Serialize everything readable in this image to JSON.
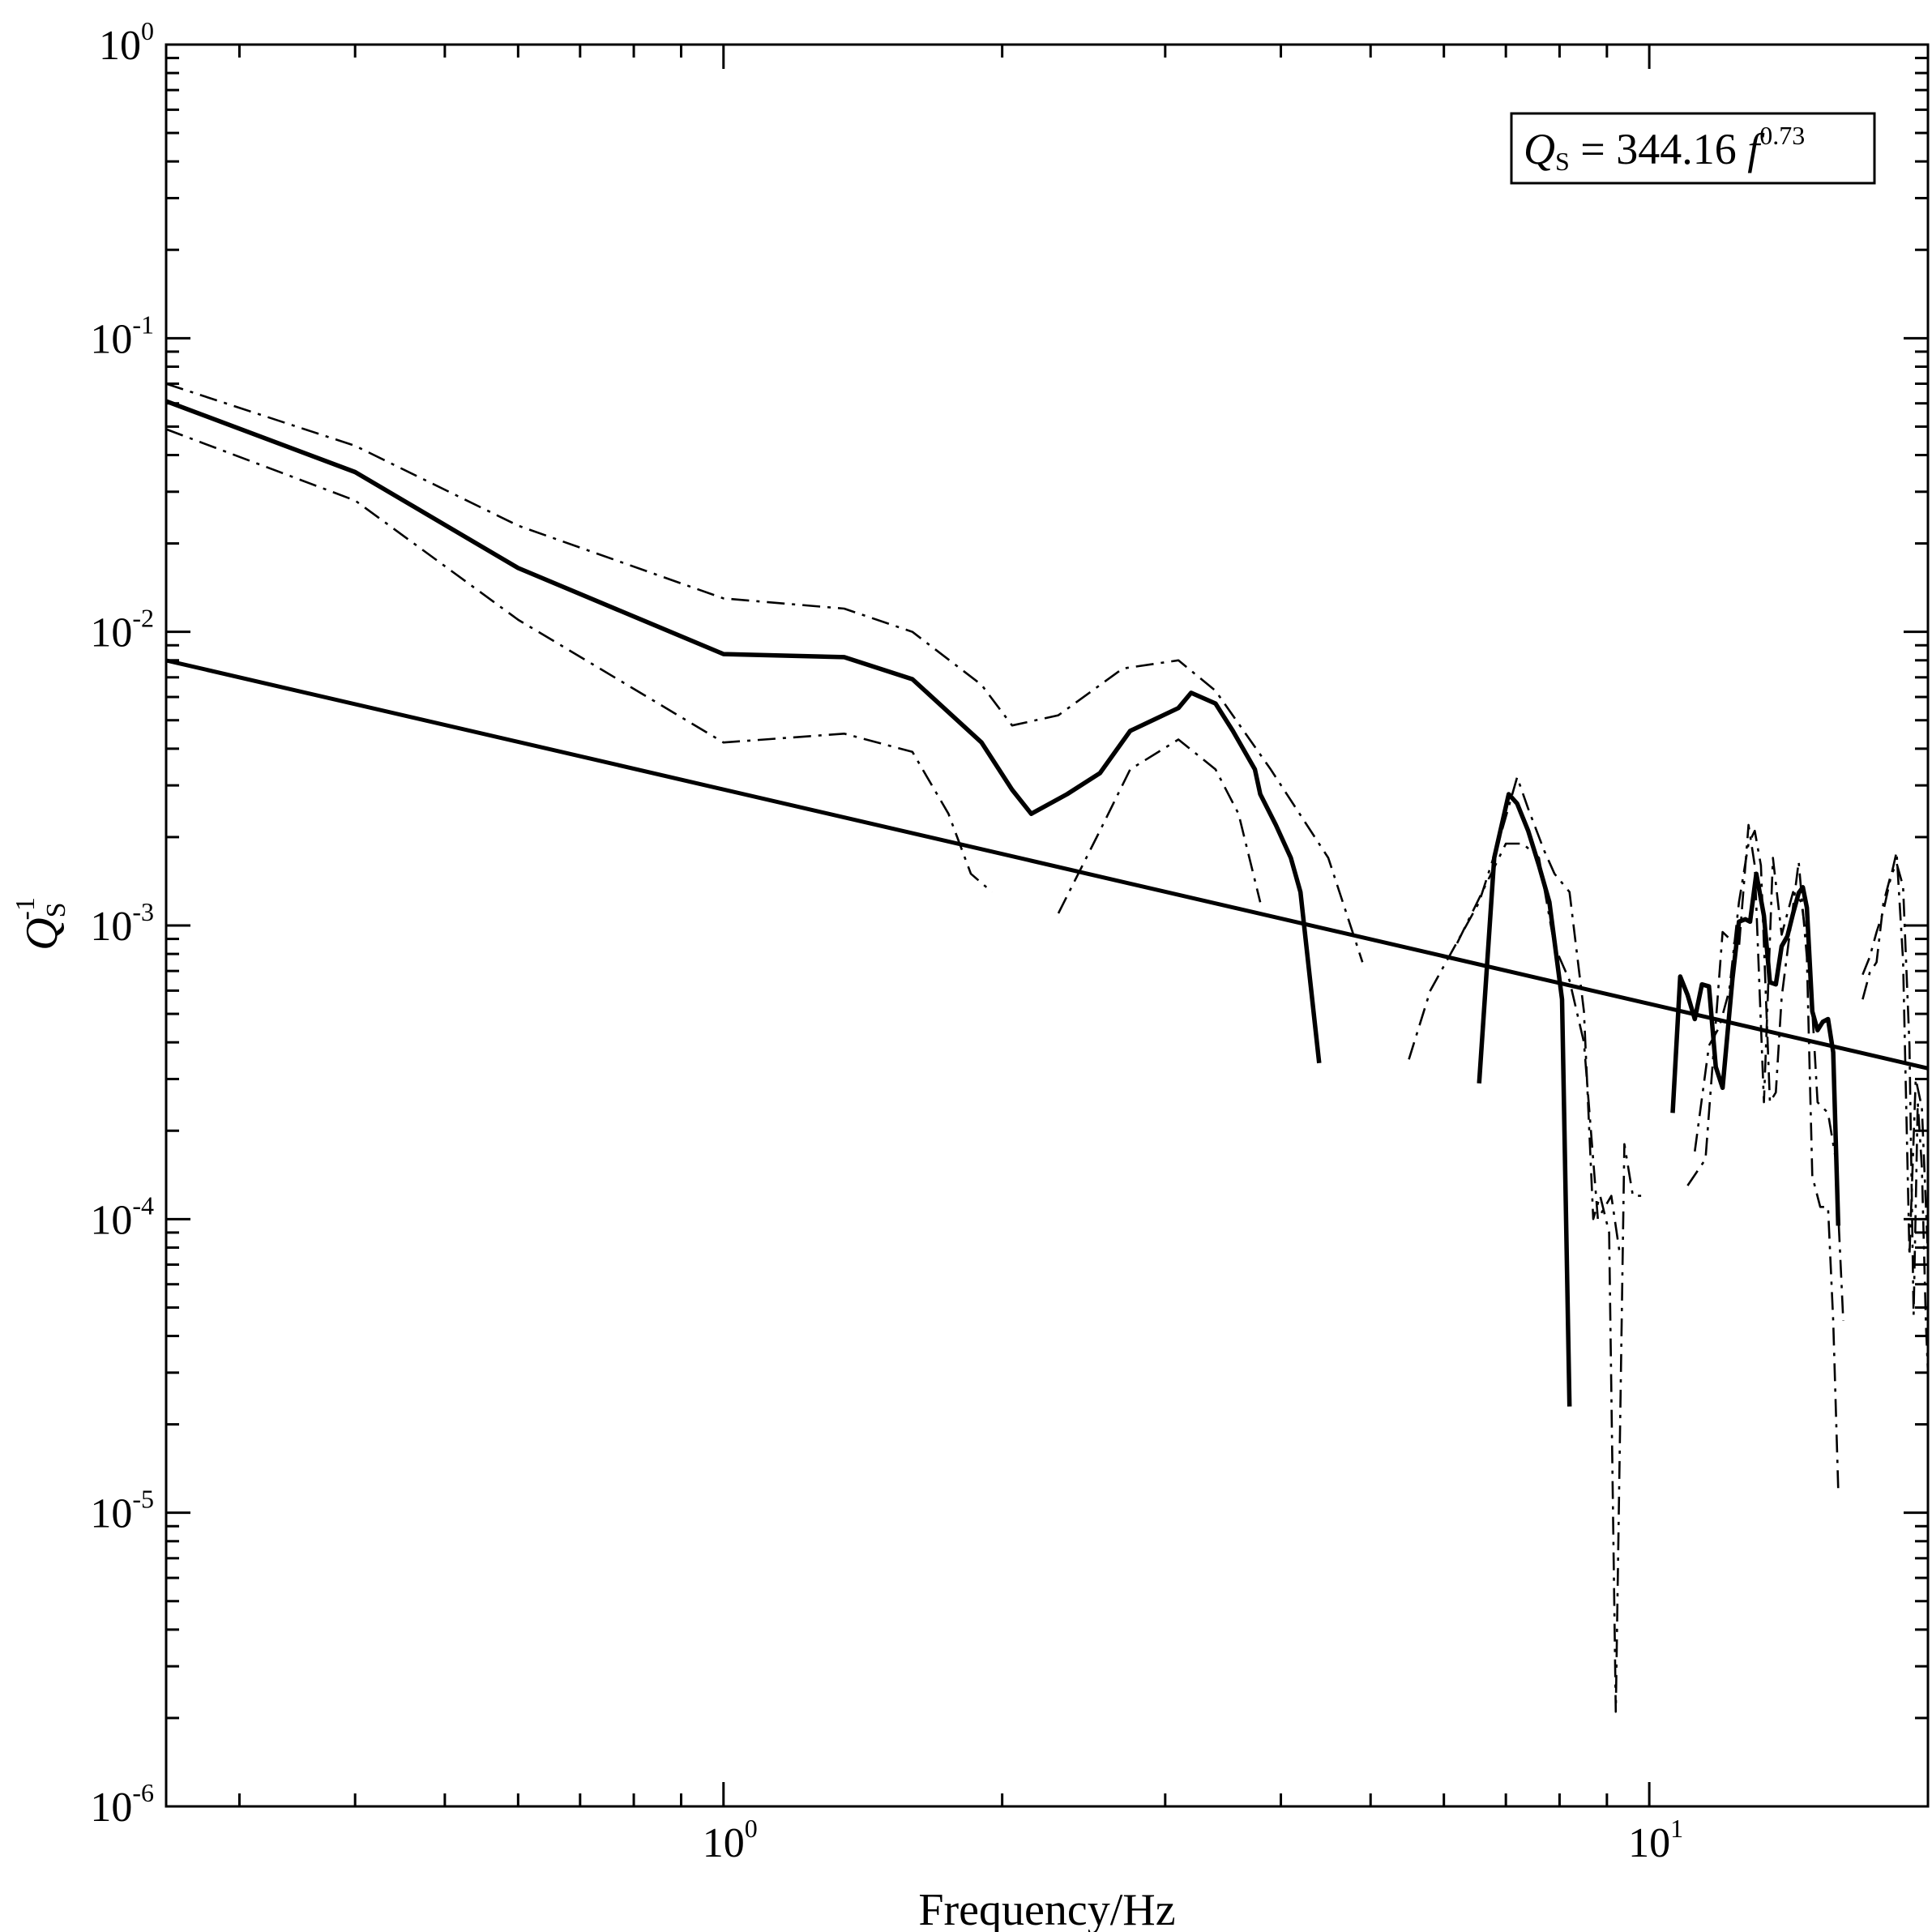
{
  "chart_data": {
    "type": "line",
    "title": "",
    "xlabel": "Frequency/Hz",
    "ylabel": {
      "base": "Q",
      "subscript": "S",
      "superscript": "-1"
    },
    "x_scale": "log",
    "y_scale": "log",
    "xlim": [
      0.25,
      20
    ],
    "ylim": [
      1e-06,
      1
    ],
    "grid": false,
    "legend": "none",
    "x_tick_labels": [
      {
        "value": 1,
        "base": "10",
        "exp": "0"
      },
      {
        "value": 10,
        "base": "10",
        "exp": "1"
      }
    ],
    "y_tick_labels": [
      {
        "value": 1,
        "base": "10",
        "exp": "0"
      },
      {
        "value": 0.1,
        "base": "10",
        "exp": "-1"
      },
      {
        "value": 0.01,
        "base": "10",
        "exp": "-2"
      },
      {
        "value": 0.001,
        "base": "10",
        "exp": "-3"
      },
      {
        "value": 0.0001,
        "base": "10",
        "exp": "-4"
      },
      {
        "value": 1e-05,
        "base": "10",
        "exp": "-5"
      },
      {
        "value": 1e-06,
        "base": "10",
        "exp": "-6"
      }
    ],
    "annotation": {
      "q": "Q",
      "sub": "S",
      "rest": " = 344.16 ",
      "f": "f",
      "exp": "0.73"
    },
    "fit_line": {
      "coefficient": 344.16,
      "exponent": 0.73
    },
    "series": [
      {
        "style": "solid",
        "segments": [
          [
            [
              0.25,
              0.061
            ],
            [
              0.4,
              0.035
            ],
            [
              0.6,
              0.0165
            ],
            [
              1.0,
              0.0084
            ],
            [
              1.35,
              0.0082
            ],
            [
              1.6,
              0.0069
            ],
            [
              1.9,
              0.0042
            ],
            [
              2.05,
              0.0029
            ],
            [
              2.15,
              0.0024
            ],
            [
              2.35,
              0.0028
            ],
            [
              2.55,
              0.0033
            ],
            [
              2.75,
              0.0046
            ],
            [
              3.1,
              0.0055
            ],
            [
              3.2,
              0.0062
            ],
            [
              3.4,
              0.0057
            ],
            [
              3.55,
              0.0046
            ],
            [
              3.75,
              0.0034
            ],
            [
              3.8,
              0.0028
            ],
            [
              3.95,
              0.0022
            ],
            [
              4.1,
              0.0017
            ],
            [
              4.2,
              0.0013
            ],
            [
              4.4,
              0.00034
            ]
          ],
          [
            [
              6.55,
              0.00029
            ],
            [
              6.8,
              0.0017
            ],
            [
              7.05,
              0.0028
            ],
            [
              7.2,
              0.0026
            ],
            [
              7.4,
              0.0021
            ],
            [
              7.6,
              0.0016
            ],
            [
              7.8,
              0.0012
            ],
            [
              8.05,
              0.00056
            ],
            [
              8.2,
              2.3e-05
            ]
          ],
          [
            [
              10.6,
              0.00023
            ],
            [
              10.8,
              0.00067
            ],
            [
              11.0,
              0.00058
            ],
            [
              11.2,
              0.00048
            ],
            [
              11.4,
              0.00063
            ],
            [
              11.6,
              0.00062
            ],
            [
              11.8,
              0.00033
            ],
            [
              12.0,
              0.00028
            ],
            [
              12.3,
              0.00066
            ],
            [
              12.5,
              0.00103
            ],
            [
              12.7,
              0.00105
            ],
            [
              12.85,
              0.00103
            ],
            [
              13.05,
              0.0015
            ],
            [
              13.3,
              0.00108
            ],
            [
              13.5,
              0.00064
            ],
            [
              13.7,
              0.00063
            ],
            [
              13.9,
              0.00085
            ],
            [
              14.1,
              0.00092
            ],
            [
              14.3,
              0.0011
            ],
            [
              14.5,
              0.00129
            ],
            [
              14.65,
              0.00135
            ],
            [
              14.8,
              0.00115
            ],
            [
              15.0,
              0.00051
            ],
            [
              15.2,
              0.00044
            ],
            [
              15.4,
              0.00047
            ],
            [
              15.6,
              0.00048
            ],
            [
              15.8,
              0.00037
            ],
            [
              16.0,
              9.5e-05
            ]
          ]
        ]
      },
      {
        "style": "dashdot",
        "segments": [
          [
            [
              0.25,
              0.07
            ],
            [
              0.4,
              0.043
            ],
            [
              0.6,
              0.023
            ],
            [
              1.0,
              0.013
            ],
            [
              1.35,
              0.012
            ],
            [
              1.6,
              0.01
            ],
            [
              1.9,
              0.0066
            ],
            [
              2.05,
              0.0048
            ],
            [
              2.3,
              0.0052
            ],
            [
              2.7,
              0.0075
            ],
            [
              3.1,
              0.008
            ],
            [
              3.4,
              0.0063
            ],
            [
              3.9,
              0.0034
            ],
            [
              4.5,
              0.0017
            ],
            [
              4.9,
              0.00075
            ]
          ],
          [
            [
              5.5,
              0.00035
            ],
            [
              5.8,
              0.0006
            ],
            [
              6.1,
              0.0008
            ],
            [
              6.55,
              0.0012
            ],
            [
              6.9,
              0.002
            ],
            [
              7.2,
              0.0032
            ],
            [
              7.4,
              0.0025
            ],
            [
              7.7,
              0.0018
            ],
            [
              7.9,
              0.0015
            ],
            [
              8.2,
              0.0013
            ],
            [
              8.5,
              0.00051
            ],
            [
              8.7,
              0.0001
            ],
            [
              8.85,
              0.00012
            ],
            [
              9.05,
              9e-05
            ],
            [
              9.2,
              2.1e-06
            ],
            [
              9.4,
              0.00018
            ],
            [
              9.6,
              0.00012
            ],
            [
              9.8,
              0.00012
            ]
          ],
          [
            [
              11.2,
              0.00017
            ],
            [
              11.6,
              0.00039
            ],
            [
              11.9,
              0.00045
            ],
            [
              12.2,
              0.0006
            ],
            [
              12.5,
              0.0012
            ],
            [
              12.8,
              0.0019
            ],
            [
              13.0,
              0.0021
            ],
            [
              13.2,
              0.0016
            ],
            [
              13.5,
              0.00025
            ],
            [
              13.7,
              0.00027
            ],
            [
              13.9,
              0.00057
            ],
            [
              14.2,
              0.00097
            ],
            [
              14.5,
              0.00165
            ],
            [
              14.8,
              0.00078
            ],
            [
              15.0,
              0.00014
            ],
            [
              15.3,
              0.00011
            ],
            [
              15.6,
              0.00011
            ],
            [
              15.8,
              4.5e-05
            ],
            [
              16.0,
              1.2e-05
            ]
          ],
          [
            [
              17.0,
              0.00056
            ],
            [
              17.3,
              0.00069
            ],
            [
              17.6,
              0.00075
            ],
            [
              17.9,
              0.00119
            ],
            [
              18.2,
              0.00145
            ],
            [
              18.5,
              0.00163
            ],
            [
              18.8,
              0.00136
            ],
            [
              19.1,
              0.00039
            ],
            [
              19.3,
              4.7e-05
            ],
            [
              19.5,
              0.00025
            ],
            [
              19.7,
              0.00015
            ],
            [
              19.9,
              4.4e-05
            ],
            [
              20.0,
              3e-05
            ]
          ]
        ]
      },
      {
        "style": "dashdot",
        "segments": [
          [
            [
              0.25,
              0.049
            ],
            [
              0.4,
              0.028
            ],
            [
              0.6,
              0.011
            ],
            [
              1.0,
              0.0042
            ],
            [
              1.35,
              0.0045
            ],
            [
              1.6,
              0.0039
            ],
            [
              1.75,
              0.0024
            ],
            [
              1.85,
              0.0015
            ],
            [
              1.95,
              0.0013
            ]
          ],
          [
            [
              2.3,
              0.0011
            ],
            [
              2.55,
              0.0021
            ],
            [
              2.75,
              0.0034
            ],
            [
              3.1,
              0.0043
            ],
            [
              3.4,
              0.0034
            ],
            [
              3.6,
              0.0024
            ],
            [
              3.8,
              0.0012
            ]
          ],
          [
            [
              6.2,
              0.00087
            ],
            [
              6.6,
              0.0013
            ],
            [
              7.0,
              0.0019
            ],
            [
              7.3,
              0.0019
            ],
            [
              7.6,
              0.0017
            ],
            [
              7.9,
              0.00085
            ],
            [
              8.2,
              0.00065
            ],
            [
              8.5,
              0.0004
            ],
            [
              8.8,
              0.0001
            ],
            [
              9.1,
              0.00012
            ],
            [
              9.3,
              7.5e-05
            ]
          ],
          [
            [
              11.0,
              0.00013
            ],
            [
              11.5,
              0.00016
            ],
            [
              12.0,
              0.00095
            ],
            [
              12.5,
              0.00084
            ],
            [
              12.8,
              0.0022
            ],
            [
              13.0,
              0.0016
            ],
            [
              13.3,
              0.00025
            ],
            [
              13.6,
              0.0017
            ],
            [
              13.9,
              0.00093
            ],
            [
              14.3,
              0.0013
            ],
            [
              14.6,
              0.0012
            ],
            [
              14.9,
              0.00074
            ],
            [
              15.2,
              0.00025
            ],
            [
              15.6,
              0.00023
            ],
            [
              15.9,
              0.00016
            ],
            [
              16.2,
              4.5e-05
            ]
          ],
          [
            [
              17.0,
              0.00068
            ],
            [
              17.3,
              0.00078
            ],
            [
              17.6,
              0.00095
            ],
            [
              17.9,
              0.00112
            ],
            [
              18.2,
              0.00142
            ],
            [
              18.5,
              0.00178
            ],
            [
              18.8,
              0.00076
            ],
            [
              19.1,
              7.5e-05
            ],
            [
              19.4,
              0.0003
            ],
            [
              19.7,
              0.00024
            ],
            [
              20.0,
              7.5e-05
            ]
          ]
        ]
      }
    ]
  }
}
